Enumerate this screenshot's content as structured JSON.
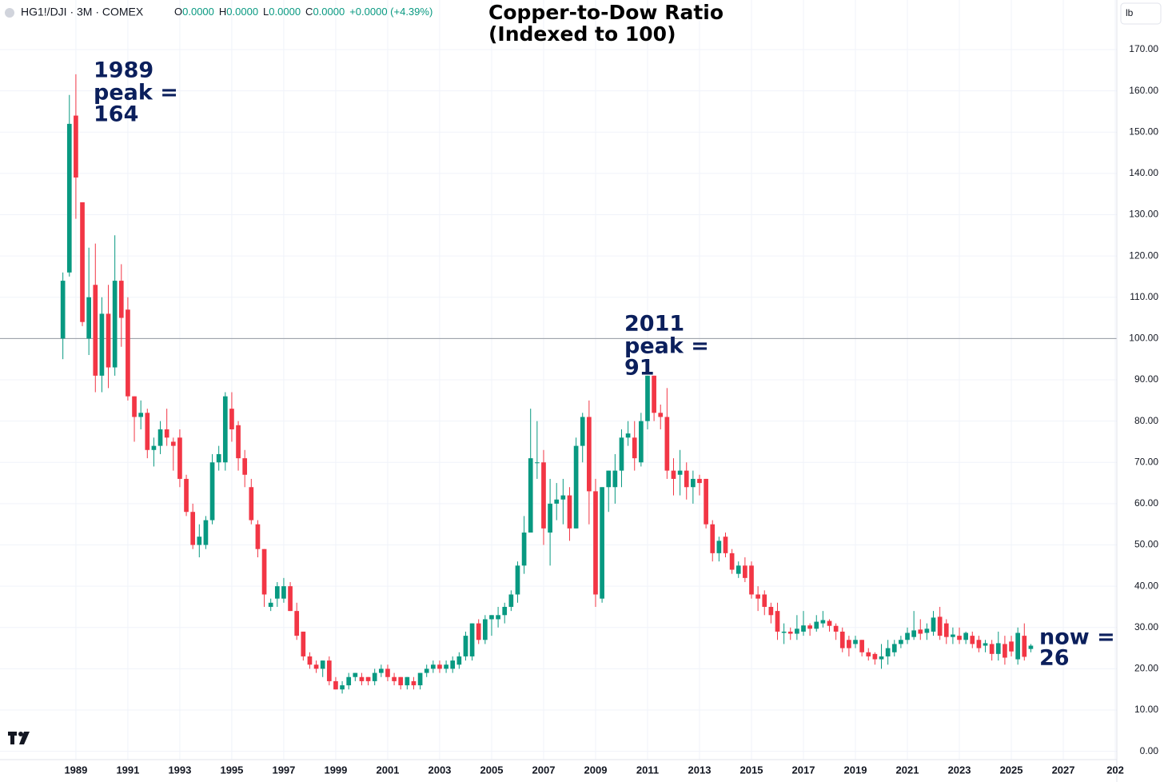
{
  "chart_data": {
    "type": "candlestick",
    "header": {
      "symbol": "HG1!/DJI · 3M · COMEX",
      "legend": [
        [
          "O",
          "0.0000"
        ],
        [
          "H",
          "0.0000"
        ],
        [
          "L",
          "0.0000"
        ],
        [
          "C",
          "0.0000"
        ]
      ],
      "change": "+0.0000 (+4.39%)",
      "unit": "lb"
    },
    "title": [
      "Copper-to-Dow Ratio",
      "(Indexed to 100)"
    ],
    "annotations": [
      {
        "lines": [
          "1989",
          "peak =",
          "164"
        ]
      },
      {
        "lines": [
          "2011",
          "peak =",
          "91"
        ]
      },
      {
        "lines": [
          "now =",
          "26"
        ]
      }
    ],
    "up_color": "#089981",
    "down_color": "#f23645",
    "hline": 100,
    "grid": true,
    "xlim": [
      1986.08,
      2029.06
    ],
    "ylim": [
      -2,
      182
    ],
    "xticks": [
      1989,
      1991,
      1993,
      1995,
      1997,
      1999,
      2001,
      2003,
      2005,
      2007,
      2009,
      2011,
      2013,
      2015,
      2017,
      2019,
      2021,
      2023,
      2025,
      2027,
      {
        "value": 2029,
        "label": "202"
      }
    ],
    "yticks": [
      {
        "value": 0,
        "label": "0.00"
      },
      {
        "value": 10,
        "label": "10.00"
      },
      {
        "value": 20,
        "label": "20.00"
      },
      {
        "value": 30,
        "label": "30.00"
      },
      {
        "value": 40,
        "label": "40.00"
      },
      {
        "value": 50,
        "label": "50.00"
      },
      {
        "value": 60,
        "label": "60.00"
      },
      {
        "value": 70,
        "label": "70.00"
      },
      {
        "value": 80,
        "label": "80.00"
      },
      {
        "value": 90,
        "label": "90.00"
      },
      {
        "value": 100,
        "label": "100.00"
      },
      {
        "value": 110,
        "label": "110.00"
      },
      {
        "value": 120,
        "label": "120.00"
      },
      {
        "value": 130,
        "label": "130.00"
      },
      {
        "value": 140,
        "label": "140.00"
      },
      {
        "value": 150,
        "label": "150.00"
      },
      {
        "value": 160,
        "label": "160.00"
      },
      {
        "value": 170,
        "label": "170.00"
      }
    ],
    "x": [
      1988.5,
      1988.75,
      1989,
      1989.25,
      1989.5,
      1989.75,
      1990,
      1990.25,
      1990.5,
      1990.75,
      1991,
      1991.25,
      1991.5,
      1991.75,
      1992,
      1992.25,
      1992.5,
      1992.75,
      1993,
      1993.25,
      1993.5,
      1993.75,
      1994,
      1994.25,
      1994.5,
      1994.75,
      1995,
      1995.25,
      1995.5,
      1995.75,
      1996,
      1996.25,
      1996.5,
      1996.75,
      1997,
      1997.25,
      1997.5,
      1997.75,
      1998,
      1998.25,
      1998.5,
      1998.75,
      1999,
      1999.25,
      1999.5,
      1999.75,
      2000,
      2000.25,
      2000.5,
      2000.75,
      2001,
      2001.25,
      2001.5,
      2001.75,
      2002,
      2002.25,
      2002.5,
      2002.75,
      2003,
      2003.25,
      2003.5,
      2003.75,
      2004,
      2004.25,
      2004.5,
      2004.75,
      2005,
      2005.25,
      2005.5,
      2005.75,
      2006,
      2006.25,
      2006.5,
      2006.75,
      2007,
      2007.25,
      2007.5,
      2007.75,
      2008,
      2008.25,
      2008.5,
      2008.75,
      2009,
      2009.25,
      2009.5,
      2009.75,
      2010,
      2010.25,
      2010.5,
      2010.75,
      2011,
      2011.25,
      2011.5,
      2011.75,
      2012,
      2012.25,
      2012.5,
      2012.75,
      2013,
      2013.25,
      2013.5,
      2013.75,
      2014,
      2014.25,
      2014.5,
      2014.75,
      2015,
      2015.25,
      2015.5,
      2015.75,
      2016,
      2016.25,
      2016.5,
      2016.75,
      2017,
      2017.25,
      2017.5,
      2017.75,
      2018,
      2018.25,
      2018.5,
      2018.75,
      2019,
      2019.25,
      2019.5,
      2019.75,
      2020,
      2020.25,
      2020.5,
      2020.75,
      2021,
      2021.25,
      2021.5,
      2021.75,
      2022,
      2022.25,
      2022.5,
      2022.75,
      2023,
      2023.25,
      2023.5,
      2023.75,
      2024,
      2024.25,
      2024.5,
      2024.75,
      2025,
      2025.25,
      2025.5,
      2025.75
    ],
    "ohlc": [
      [
        100,
        116,
        95,
        114
      ],
      [
        116,
        159,
        115,
        152
      ],
      [
        154,
        164,
        129,
        139
      ],
      [
        133,
        133,
        103,
        104
      ],
      [
        100,
        122,
        96,
        110
      ],
      [
        113,
        123,
        87,
        91
      ],
      [
        91,
        110,
        87,
        106
      ],
      [
        106,
        113,
        88,
        93
      ],
      [
        93,
        125,
        91,
        114
      ],
      [
        114,
        118,
        98,
        105
      ],
      [
        107,
        110,
        85,
        86
      ],
      [
        86,
        86,
        75,
        81
      ],
      [
        81,
        85,
        78,
        82
      ],
      [
        82,
        83,
        71,
        73
      ],
      [
        73,
        76,
        69,
        74
      ],
      [
        74,
        80,
        72,
        78
      ],
      [
        78,
        83,
        74,
        76
      ],
      [
        75,
        76,
        68,
        74
      ],
      [
        76,
        78,
        64,
        66
      ],
      [
        66,
        67,
        57,
        58
      ],
      [
        58,
        60,
        49,
        50
      ],
      [
        50,
        55,
        47,
        52
      ],
      [
        50,
        57,
        49,
        56
      ],
      [
        56,
        72,
        55,
        70
      ],
      [
        70,
        74,
        68,
        72
      ],
      [
        70,
        87,
        68,
        86
      ],
      [
        83,
        87,
        75,
        78
      ],
      [
        79,
        80,
        68,
        71
      ],
      [
        71,
        73,
        64,
        67
      ],
      [
        64,
        66,
        55,
        56
      ],
      [
        55,
        56,
        47,
        49
      ],
      [
        49,
        49,
        35,
        38
      ],
      [
        35,
        37,
        34,
        36
      ],
      [
        37,
        41,
        35,
        40
      ],
      [
        37,
        42,
        36,
        40
      ],
      [
        40,
        41,
        34,
        34
      ],
      [
        34,
        36,
        27,
        28
      ],
      [
        29,
        29,
        22,
        23
      ],
      [
        23,
        24,
        20,
        21
      ],
      [
        21,
        22,
        19,
        20
      ],
      [
        20,
        22,
        18,
        22
      ],
      [
        22,
        23,
        16,
        17
      ],
      [
        17,
        18,
        15,
        15
      ],
      [
        15,
        17,
        14,
        16
      ],
      [
        16,
        19,
        15,
        18
      ],
      [
        18,
        19,
        17,
        19
      ],
      [
        18,
        19,
        16,
        17
      ],
      [
        18,
        18,
        16,
        17
      ],
      [
        17,
        20,
        16,
        19
      ],
      [
        19,
        21,
        18,
        20
      ],
      [
        20,
        21,
        17,
        18
      ],
      [
        18,
        19,
        16,
        17
      ],
      [
        18,
        18,
        15,
        16
      ],
      [
        16,
        18,
        15,
        18
      ],
      [
        17,
        18,
        15,
        16
      ],
      [
        16,
        19,
        15,
        19
      ],
      [
        19,
        21,
        18,
        20
      ],
      [
        20,
        22,
        19,
        21
      ],
      [
        21,
        22,
        19,
        20
      ],
      [
        20,
        22,
        19,
        21
      ],
      [
        20,
        23,
        19,
        22
      ],
      [
        21,
        24,
        20,
        23
      ],
      [
        23,
        29,
        22,
        28
      ],
      [
        23,
        31,
        22,
        31
      ],
      [
        31,
        32,
        26,
        27
      ],
      [
        27,
        33,
        26,
        32
      ],
      [
        32,
        33,
        28,
        33
      ],
      [
        32,
        35,
        30,
        33
      ],
      [
        33,
        36,
        31,
        35
      ],
      [
        35,
        39,
        34,
        38
      ],
      [
        38,
        46,
        36,
        45
      ],
      [
        45,
        57,
        43,
        53
      ],
      [
        53,
        83,
        53,
        71
      ],
      [
        70,
        80,
        66,
        70
      ],
      [
        70,
        73,
        50,
        54
      ],
      [
        53,
        66,
        45,
        60
      ],
      [
        60,
        65,
        56,
        61
      ],
      [
        61,
        66,
        55,
        62
      ],
      [
        62,
        64,
        51,
        54
      ],
      [
        54,
        76,
        54,
        74
      ],
      [
        74,
        82,
        70,
        81
      ],
      [
        81,
        85,
        55,
        63
      ],
      [
        63,
        66,
        35,
        38
      ],
      [
        37,
        64,
        36,
        64
      ],
      [
        64,
        68,
        58,
        68
      ],
      [
        64,
        72,
        60,
        68
      ],
      [
        68,
        78,
        64,
        76
      ],
      [
        76,
        80,
        74,
        77
      ],
      [
        76,
        80,
        68,
        71
      ],
      [
        70,
        82,
        69,
        80
      ],
      [
        80,
        91,
        78,
        91
      ],
      [
        91,
        91,
        80,
        82
      ],
      [
        82,
        84,
        78,
        81
      ],
      [
        81,
        88,
        66,
        68
      ],
      [
        68,
        71,
        62,
        66
      ],
      [
        67,
        73,
        62,
        68
      ],
      [
        68,
        70,
        61,
        64
      ],
      [
        64,
        68,
        60,
        66
      ],
      [
        66,
        67,
        62,
        65
      ],
      [
        66,
        66,
        54,
        55
      ],
      [
        55,
        56,
        46,
        48
      ],
      [
        48,
        52,
        46,
        51
      ],
      [
        52,
        53,
        47,
        48
      ],
      [
        48,
        49,
        43,
        44
      ],
      [
        43,
        46,
        42,
        45
      ],
      [
        45,
        47,
        41,
        42
      ],
      [
        45,
        46,
        37,
        38
      ],
      [
        38,
        40,
        34,
        37
      ],
      [
        38,
        39,
        33,
        35
      ],
      [
        35,
        36,
        31,
        33
      ],
      [
        34,
        36,
        27,
        29
      ],
      [
        28.7,
        31,
        26,
        29
      ],
      [
        29,
        30,
        27,
        28.5
      ],
      [
        28.5,
        33,
        27,
        29.7
      ],
      [
        29,
        34,
        28,
        30.5
      ],
      [
        30.5,
        31,
        28,
        29.7
      ],
      [
        29.7,
        33,
        29,
        31.4
      ],
      [
        31,
        34,
        30,
        31.8
      ],
      [
        31.6,
        32,
        29,
        30.4
      ],
      [
        30.4,
        31,
        27,
        29
      ],
      [
        29,
        30,
        24,
        25
      ],
      [
        27,
        28,
        23,
        25
      ],
      [
        26,
        28,
        25,
        27
      ],
      [
        27,
        27,
        23,
        24
      ],
      [
        24,
        25,
        22,
        23
      ],
      [
        23.6,
        24,
        21,
        22.3
      ],
      [
        22.3,
        26,
        20,
        23
      ],
      [
        23,
        27,
        21,
        25
      ],
      [
        24,
        27,
        23,
        26
      ],
      [
        26,
        28,
        25,
        27
      ],
      [
        27,
        30,
        26,
        28.7
      ],
      [
        27.7,
        34,
        27,
        29.3
      ],
      [
        29.5,
        32,
        27,
        28.5
      ],
      [
        28.7,
        31,
        27,
        29.7
      ],
      [
        29,
        34,
        28,
        32.4
      ],
      [
        32.6,
        35,
        27,
        28
      ],
      [
        31,
        32,
        26,
        27.7
      ],
      [
        27.7,
        30,
        26,
        28.3
      ],
      [
        28,
        30,
        26,
        27
      ],
      [
        27,
        29,
        26,
        28.7
      ],
      [
        28,
        29,
        25,
        26
      ],
      [
        27,
        28,
        24,
        25
      ],
      [
        25.6,
        27,
        24,
        26.2
      ],
      [
        26,
        27,
        22,
        23.6
      ],
      [
        23.6,
        29,
        22,
        26.2
      ],
      [
        26,
        28,
        21,
        22.7
      ],
      [
        26.6,
        28,
        23,
        24.2
      ],
      [
        22.3,
        30,
        21,
        28.7
      ],
      [
        28,
        31,
        22,
        22.9
      ],
      [
        24.8,
        26,
        24,
        25.6
      ]
    ]
  }
}
